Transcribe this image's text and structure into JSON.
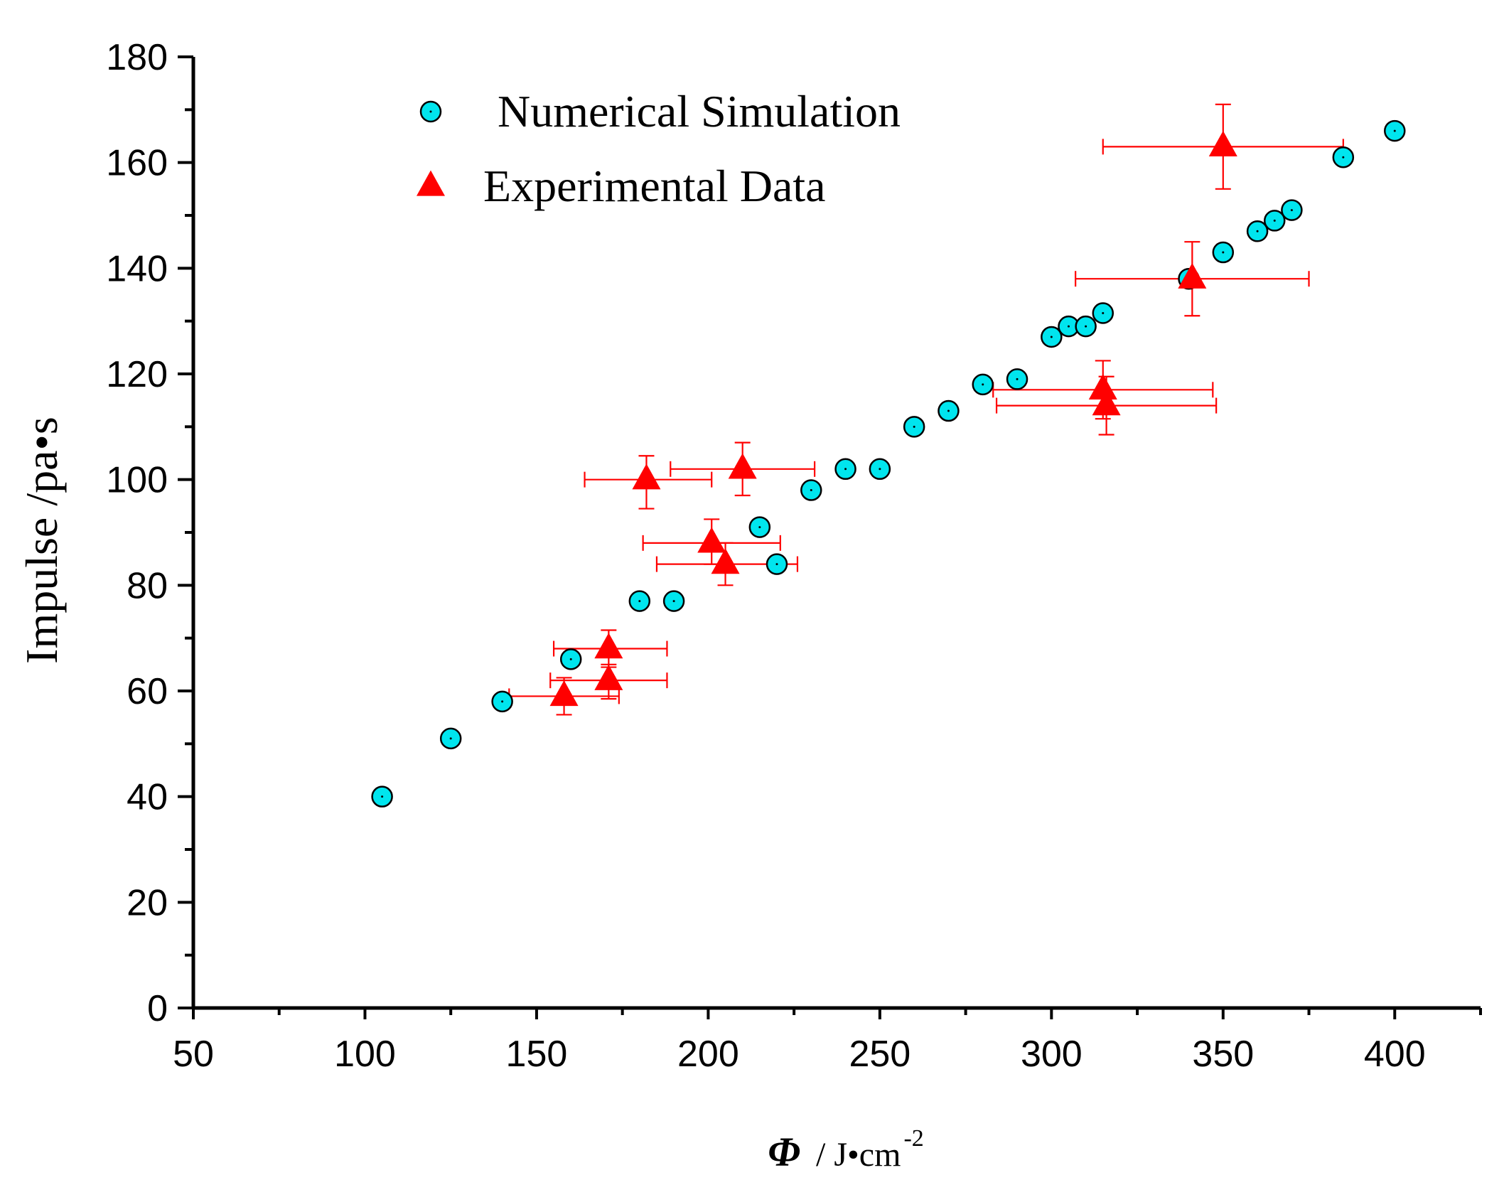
{
  "chart_data": {
    "type": "scatter",
    "colors": {
      "simulation": "#00e5ee",
      "experimental": "#ff0000",
      "axis": "#000000"
    },
    "xlim": [
      50,
      425
    ],
    "ylim": [
      0,
      180
    ],
    "x_ticks": [
      50,
      100,
      150,
      200,
      250,
      300,
      350,
      400
    ],
    "x_tick_labels": [
      "50",
      "100",
      "150",
      "200",
      "250",
      "300",
      "350",
      "400"
    ],
    "x_minor_ticks": [
      75,
      125,
      175,
      225,
      275,
      325,
      375,
      425
    ],
    "y_ticks": [
      0,
      20,
      40,
      60,
      80,
      100,
      120,
      140,
      160,
      180
    ],
    "y_tick_labels": [
      "0",
      "20",
      "40",
      "60",
      "80",
      "100",
      "120",
      "140",
      "160",
      "180"
    ],
    "y_minor_ticks": [
      10,
      30,
      50,
      70,
      90,
      110,
      130,
      150,
      170
    ],
    "ylabel": "Impulse  /pa•s",
    "xlabel": {
      "symbol": "Φ",
      "unit": "/ J•cm",
      "exponent": "-2"
    },
    "legend": {
      "position": "top-left"
    },
    "series": [
      {
        "name": "Numerical Simulation",
        "marker": "circle",
        "points": [
          [
            105,
            40
          ],
          [
            125,
            51
          ],
          [
            140,
            58
          ],
          [
            160,
            66
          ],
          [
            180,
            77
          ],
          [
            190,
            77
          ],
          [
            215,
            91
          ],
          [
            220,
            84
          ],
          [
            230,
            98
          ],
          [
            240,
            102
          ],
          [
            250,
            102
          ],
          [
            260,
            110
          ],
          [
            270,
            113
          ],
          [
            280,
            118
          ],
          [
            290,
            119
          ],
          [
            300,
            127
          ],
          [
            305,
            129
          ],
          [
            310,
            129
          ],
          [
            315,
            131.5
          ],
          [
            340,
            138
          ],
          [
            350,
            143
          ],
          [
            360,
            147
          ],
          [
            365,
            149
          ],
          [
            370,
            151
          ],
          [
            385,
            161
          ],
          [
            400,
            166
          ]
        ]
      },
      {
        "name": "Experimental Data",
        "marker": "triangle",
        "points": [
          {
            "x": 158,
            "y": 59,
            "xerr": [
              142,
              174
            ],
            "yerr": [
              55.5,
              62.5
            ]
          },
          {
            "x": 171,
            "y": 62,
            "xerr": [
              154,
              188
            ],
            "yerr": [
              58.5,
              65
            ]
          },
          {
            "x": 171,
            "y": 68,
            "xerr": [
              155,
              188
            ],
            "yerr": [
              64.5,
              71.5
            ]
          },
          {
            "x": 182,
            "y": 100,
            "xerr": [
              164,
              201
            ],
            "yerr": [
              94.5,
              104.5
            ]
          },
          {
            "x": 201,
            "y": 88,
            "xerr": [
              181,
              221
            ],
            "yerr": [
              84,
              92.5
            ]
          },
          {
            "x": 205,
            "y": 84,
            "xerr": [
              185,
              226
            ],
            "yerr": [
              80,
              88
            ]
          },
          {
            "x": 210,
            "y": 102,
            "xerr": [
              189,
              231
            ],
            "yerr": [
              97,
              107
            ]
          },
          {
            "x": 315,
            "y": 117,
            "xerr": [
              283,
              347
            ],
            "yerr": [
              111.5,
              122.5
            ]
          },
          {
            "x": 316,
            "y": 114,
            "xerr": [
              284,
              348
            ],
            "yerr": [
              108.5,
              119.5
            ]
          },
          {
            "x": 341,
            "y": 138,
            "xerr": [
              307,
              375
            ],
            "yerr": [
              131,
              145
            ]
          },
          {
            "x": 350,
            "y": 163,
            "xerr": [
              315,
              385
            ],
            "yerr": [
              155,
              171
            ]
          }
        ]
      }
    ]
  }
}
